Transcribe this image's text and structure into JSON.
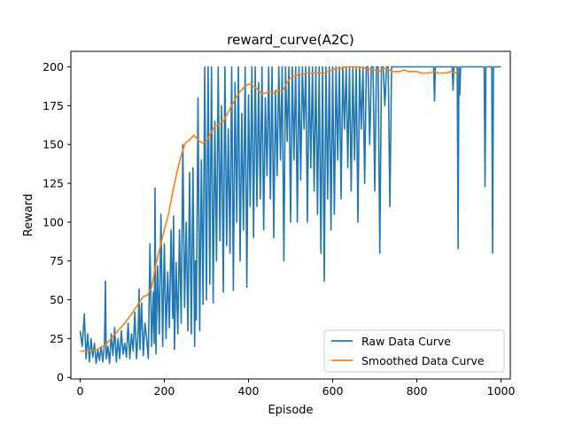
{
  "chart_data": {
    "type": "line",
    "title": "reward_curve(A2C)",
    "xlabel": "Episode",
    "ylabel": "Reward",
    "xlim": [
      -22,
      1022
    ],
    "ylim": [
      -1,
      210
    ],
    "xticks": [
      0,
      200,
      400,
      600,
      800,
      1000
    ],
    "yticks": [
      0,
      25,
      50,
      75,
      100,
      125,
      150,
      175,
      200
    ],
    "grid": false,
    "legend": "lower right",
    "series": [
      {
        "name": "Raw Data Curve",
        "color": "#1f77b4",
        "points": [
          [
            0,
            30
          ],
          [
            5,
            20
          ],
          [
            10,
            41
          ],
          [
            14,
            12
          ],
          [
            18,
            28
          ],
          [
            22,
            10
          ],
          [
            26,
            25
          ],
          [
            30,
            13
          ],
          [
            34,
            22
          ],
          [
            38,
            9
          ],
          [
            42,
            18
          ],
          [
            46,
            11
          ],
          [
            50,
            20
          ],
          [
            54,
            10
          ],
          [
            58,
            22
          ],
          [
            60,
            62
          ],
          [
            62,
            12
          ],
          [
            66,
            20
          ],
          [
            70,
            9
          ],
          [
            74,
            28
          ],
          [
            78,
            14
          ],
          [
            82,
            32
          ],
          [
            86,
            10
          ],
          [
            90,
            25
          ],
          [
            94,
            12
          ],
          [
            98,
            30
          ],
          [
            102,
            15
          ],
          [
            106,
            22
          ],
          [
            110,
            13
          ],
          [
            114,
            35
          ],
          [
            118,
            12
          ],
          [
            122,
            28
          ],
          [
            126,
            17
          ],
          [
            130,
            42
          ],
          [
            134,
            12
          ],
          [
            138,
            30
          ],
          [
            140,
            57
          ],
          [
            142,
            18
          ],
          [
            146,
            48
          ],
          [
            150,
            14
          ],
          [
            154,
            35
          ],
          [
            158,
            25
          ],
          [
            162,
            12
          ],
          [
            166,
            86
          ],
          [
            170,
            20
          ],
          [
            174,
            55
          ],
          [
            176,
            22
          ],
          [
            178,
            122
          ],
          [
            180,
            15
          ],
          [
            184,
            72
          ],
          [
            188,
            28
          ],
          [
            192,
            105
          ],
          [
            196,
            20
          ],
          [
            200,
            86
          ],
          [
            204,
            25
          ],
          [
            208,
            68
          ],
          [
            212,
            32
          ],
          [
            216,
            95
          ],
          [
            220,
            38
          ],
          [
            222,
            104
          ],
          [
            224,
            18
          ],
          [
            228,
            74
          ],
          [
            232,
            28
          ],
          [
            236,
            95
          ],
          [
            240,
            35
          ],
          [
            244,
            150
          ],
          [
            248,
            45
          ],
          [
            252,
            100
          ],
          [
            256,
            30
          ],
          [
            260,
            132
          ],
          [
            264,
            28
          ],
          [
            268,
            135
          ],
          [
            272,
            20
          ],
          [
            274,
            75
          ],
          [
            276,
            37
          ],
          [
            280,
            180
          ],
          [
            284,
            30
          ],
          [
            288,
            140
          ],
          [
            292,
            47
          ],
          [
            296,
            200
          ],
          [
            300,
            50
          ],
          [
            304,
            200
          ],
          [
            308,
            60
          ],
          [
            312,
            200
          ],
          [
            316,
            48
          ],
          [
            320,
            165
          ],
          [
            324,
            75
          ],
          [
            328,
            200
          ],
          [
            332,
            88
          ],
          [
            336,
            175
          ],
          [
            340,
            55
          ],
          [
            344,
            200
          ],
          [
            348,
            85
          ],
          [
            352,
            160
          ],
          [
            356,
            80
          ],
          [
            360,
            200
          ],
          [
            364,
            56
          ],
          [
            368,
            190
          ],
          [
            372,
            100
          ],
          [
            376,
            200
          ],
          [
            380,
            75
          ],
          [
            384,
            170
          ],
          [
            388,
            95
          ],
          [
            392,
            200
          ],
          [
            396,
            58
          ],
          [
            400,
            182
          ],
          [
            404,
            110
          ],
          [
            408,
            200
          ],
          [
            412,
            90
          ],
          [
            416,
            200
          ],
          [
            420,
            110
          ],
          [
            424,
            190
          ],
          [
            428,
            115
          ],
          [
            432,
            200
          ],
          [
            436,
            95
          ],
          [
            440,
            180
          ],
          [
            444,
            130
          ],
          [
            448,
            200
          ],
          [
            452,
            115
          ],
          [
            456,
            200
          ],
          [
            460,
            90
          ],
          [
            464,
            185
          ],
          [
            468,
            130
          ],
          [
            472,
            200
          ],
          [
            476,
            140
          ],
          [
            480,
            200
          ],
          [
            484,
            75
          ],
          [
            488,
            200
          ],
          [
            492,
            152
          ],
          [
            496,
            200
          ],
          [
            500,
            100
          ],
          [
            504,
            200
          ],
          [
            508,
            140
          ],
          [
            512,
            200
          ],
          [
            516,
            100
          ],
          [
            520,
            200
          ],
          [
            524,
            127
          ],
          [
            528,
            200
          ],
          [
            532,
            160
          ],
          [
            536,
            200
          ],
          [
            540,
            100
          ],
          [
            544,
            200
          ],
          [
            548,
            135
          ],
          [
            552,
            200
          ],
          [
            556,
            120
          ],
          [
            560,
            200
          ],
          [
            564,
            105
          ],
          [
            568,
            200
          ],
          [
            572,
            80
          ],
          [
            576,
            200
          ],
          [
            580,
            62
          ],
          [
            584,
            200
          ],
          [
            588,
            115
          ],
          [
            592,
            200
          ],
          [
            596,
            95
          ],
          [
            600,
            200
          ],
          [
            604,
            105
          ],
          [
            608,
            200
          ],
          [
            612,
            140
          ],
          [
            616,
            200
          ],
          [
            620,
            115
          ],
          [
            624,
            200
          ],
          [
            628,
            160
          ],
          [
            632,
            200
          ],
          [
            636,
            135
          ],
          [
            640,
            200
          ],
          [
            644,
            120
          ],
          [
            648,
            200
          ],
          [
            652,
            140
          ],
          [
            656,
            200
          ],
          [
            660,
            100
          ],
          [
            664,
            200
          ],
          [
            668,
            160
          ],
          [
            672,
            200
          ],
          [
            676,
            125
          ],
          [
            680,
            200
          ],
          [
            684,
            200
          ],
          [
            688,
            150
          ],
          [
            692,
            200
          ],
          [
            696,
            200
          ],
          [
            700,
            120
          ],
          [
            704,
            200
          ],
          [
            708,
            200
          ],
          [
            712,
            80
          ],
          [
            716,
            200
          ],
          [
            720,
            200
          ],
          [
            724,
            175
          ],
          [
            728,
            200
          ],
          [
            732,
            200
          ],
          [
            736,
            110
          ],
          [
            740,
            200
          ],
          [
            744,
            200
          ],
          [
            748,
            200
          ],
          [
            752,
            200
          ],
          [
            756,
            200
          ],
          [
            760,
            200
          ],
          [
            764,
            200
          ],
          [
            768,
            200
          ],
          [
            772,
            200
          ],
          [
            776,
            200
          ],
          [
            780,
            200
          ],
          [
            784,
            200
          ],
          [
            788,
            200
          ],
          [
            792,
            200
          ],
          [
            796,
            200
          ],
          [
            800,
            200
          ],
          [
            804,
            200
          ],
          [
            808,
            200
          ],
          [
            812,
            200
          ],
          [
            816,
            200
          ],
          [
            820,
            200
          ],
          [
            824,
            200
          ],
          [
            828,
            200
          ],
          [
            832,
            200
          ],
          [
            836,
            200
          ],
          [
            840,
            200
          ],
          [
            842,
            178
          ],
          [
            844,
            200
          ],
          [
            848,
            200
          ],
          [
            852,
            200
          ],
          [
            856,
            200
          ],
          [
            860,
            200
          ],
          [
            864,
            200
          ],
          [
            868,
            200
          ],
          [
            872,
            200
          ],
          [
            876,
            200
          ],
          [
            880,
            200
          ],
          [
            884,
            200
          ],
          [
            886,
            185
          ],
          [
            888,
            200
          ],
          [
            892,
            200
          ],
          [
            896,
            200
          ],
          [
            898,
            83
          ],
          [
            900,
            200
          ],
          [
            902,
            182
          ],
          [
            904,
            200
          ],
          [
            910,
            200
          ],
          [
            920,
            200
          ],
          [
            930,
            200
          ],
          [
            940,
            200
          ],
          [
            950,
            200
          ],
          [
            960,
            200
          ],
          [
            962,
            123
          ],
          [
            964,
            200
          ],
          [
            970,
            200
          ],
          [
            975,
            200
          ],
          [
            978,
            200
          ],
          [
            980,
            80
          ],
          [
            982,
            200
          ],
          [
            990,
            200
          ],
          [
            1000,
            200
          ]
        ]
      },
      {
        "name": "Smoothed Data Curve",
        "color": "#ff7f0e",
        "points": [
          [
            0,
            17
          ],
          [
            20,
            17
          ],
          [
            40,
            18
          ],
          [
            60,
            21
          ],
          [
            80,
            27
          ],
          [
            100,
            33
          ],
          [
            120,
            40
          ],
          [
            140,
            48
          ],
          [
            150,
            52
          ],
          [
            160,
            53
          ],
          [
            170,
            58
          ],
          [
            180,
            73
          ],
          [
            190,
            84
          ],
          [
            200,
            95
          ],
          [
            210,
            105
          ],
          [
            220,
            120
          ],
          [
            230,
            132
          ],
          [
            240,
            143
          ],
          [
            250,
            151
          ],
          [
            260,
            153
          ],
          [
            270,
            156
          ],
          [
            280,
            153
          ],
          [
            290,
            151
          ],
          [
            300,
            152
          ],
          [
            310,
            157
          ],
          [
            320,
            162
          ],
          [
            330,
            163
          ],
          [
            340,
            165
          ],
          [
            350,
            170
          ],
          [
            360,
            175
          ],
          [
            370,
            180
          ],
          [
            380,
            184
          ],
          [
            390,
            187
          ],
          [
            400,
            189
          ],
          [
            410,
            188
          ],
          [
            420,
            186
          ],
          [
            430,
            183
          ],
          [
            440,
            183
          ],
          [
            450,
            184
          ],
          [
            460,
            183
          ],
          [
            470,
            185
          ],
          [
            480,
            184
          ],
          [
            490,
            189
          ],
          [
            500,
            193
          ],
          [
            510,
            194
          ],
          [
            520,
            195
          ],
          [
            530,
            195
          ],
          [
            540,
            196
          ],
          [
            550,
            196
          ],
          [
            560,
            196
          ],
          [
            570,
            196
          ],
          [
            580,
            196
          ],
          [
            590,
            197
          ],
          [
            600,
            198
          ],
          [
            610,
            199
          ],
          [
            620,
            199
          ],
          [
            630,
            200
          ],
          [
            640,
            200
          ],
          [
            660,
            200
          ],
          [
            680,
            199
          ],
          [
            700,
            198
          ],
          [
            710,
            197
          ],
          [
            720,
            199
          ],
          [
            730,
            199
          ],
          [
            740,
            197
          ],
          [
            750,
            197
          ],
          [
            760,
            197
          ],
          [
            770,
            198
          ],
          [
            780,
            197
          ],
          [
            790,
            197
          ],
          [
            800,
            197
          ],
          [
            810,
            196
          ],
          [
            820,
            196
          ],
          [
            830,
            196
          ],
          [
            840,
            197
          ],
          [
            850,
            196
          ],
          [
            860,
            196
          ],
          [
            870,
            196
          ],
          [
            880,
            197
          ],
          [
            890,
            196
          ],
          [
            900,
            197
          ]
        ]
      }
    ]
  }
}
